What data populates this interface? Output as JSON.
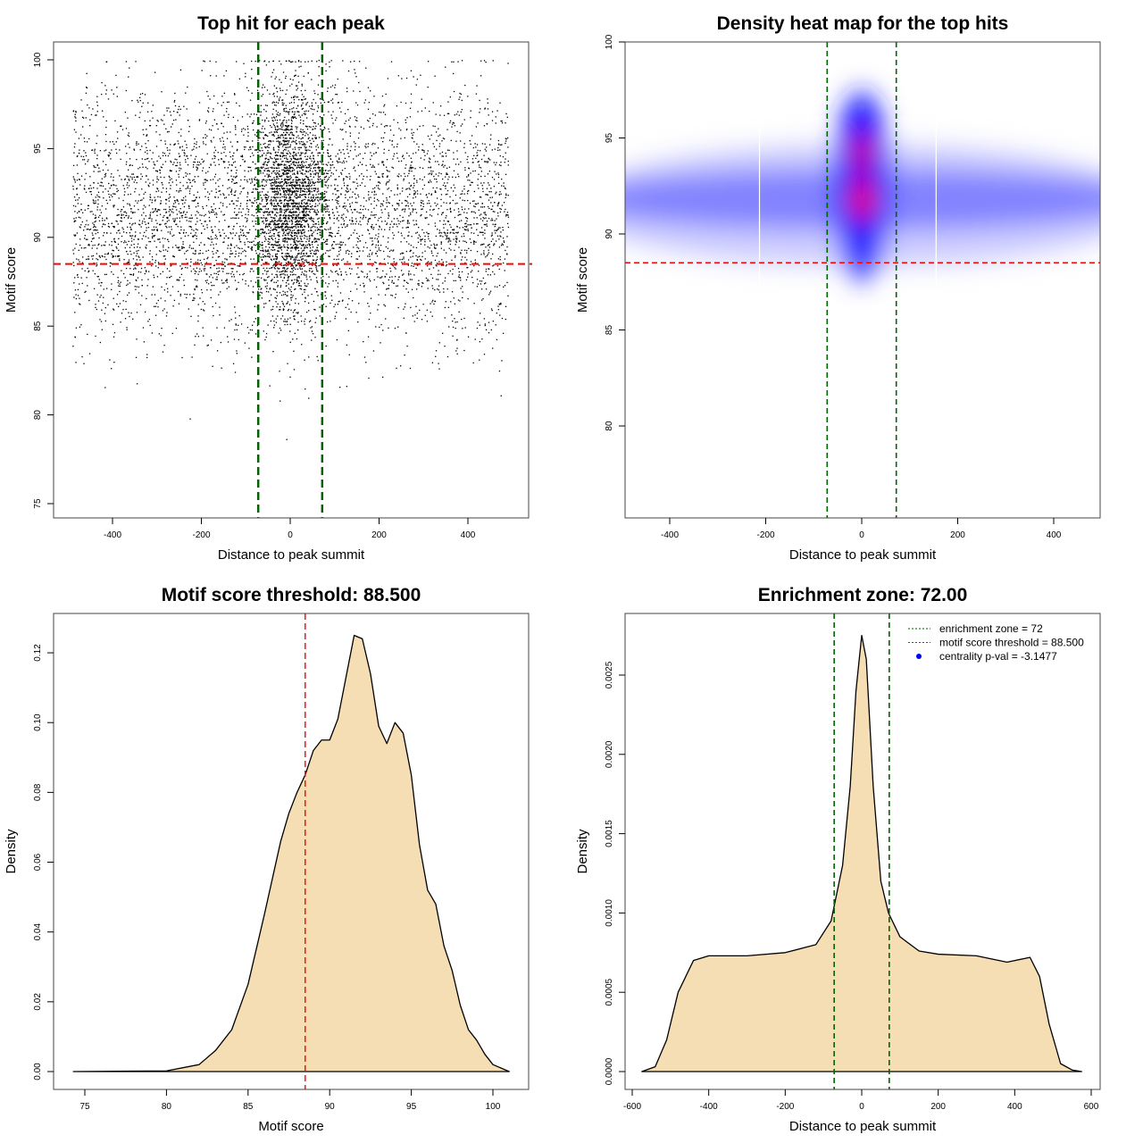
{
  "chart_data": [
    {
      "type": "scatter",
      "title": "Top hit for each peak",
      "xlabel": "Distance to peak summit",
      "ylabel": "Motif score",
      "xticks": [
        -400,
        -200,
        0,
        200,
        400
      ],
      "yticks": [
        75,
        80,
        85,
        90,
        95,
        100
      ],
      "xlim": [
        -532,
        537
      ],
      "ylim": [
        74.3,
        101
      ],
      "vlines": [
        -72,
        72
      ],
      "hline": 88.5,
      "vline_color": "#006400",
      "hline_color": "#ff0000",
      "points_description": {
        "n": 7000,
        "x_range": [
          -490,
          490
        ],
        "central_fraction": 0.3,
        "central_sd": 40,
        "y_mean": 91.5,
        "y_sd": 3.3,
        "y_max": 100,
        "seed": 7
      }
    },
    {
      "type": "heatmap",
      "title": "Density heat map for the top hits",
      "xlabel": "Distance to peak summit",
      "ylabel": "Motif score",
      "xticks": [
        -400,
        -200,
        0,
        200,
        400
      ],
      "yticks": [
        80,
        85,
        90,
        95,
        100
      ],
      "xlim": [
        -492,
        498
      ],
      "ylim": [
        75.2,
        100
      ],
      "vlines": [
        -72,
        72
      ],
      "hline": 88.5,
      "density_blobs": [
        {
          "x": 0,
          "y": 91.5,
          "sx": 600,
          "sy": 3.2,
          "color": "#c8c8ff",
          "opacity": 0.9
        },
        {
          "x": 0,
          "y": 91.8,
          "sx": 600,
          "sy": 1.6,
          "color": "#7070ff",
          "opacity": 0.8
        },
        {
          "x": 0,
          "y": 92.5,
          "sx": 60,
          "sy": 5,
          "color": "#2020ff",
          "opacity": 0.9
        },
        {
          "x": 0,
          "y": 93,
          "sx": 35,
          "sy": 3.5,
          "color": "#0000ff",
          "opacity": 1
        },
        {
          "x": 2,
          "y": 94.2,
          "sx": 18,
          "sy": 0.9,
          "color": "#ff0000",
          "opacity": 0.95
        },
        {
          "x": 2,
          "y": 91.8,
          "sx": 22,
          "sy": 1.1,
          "color": "#ff0000",
          "opacity": 1
        }
      ]
    },
    {
      "type": "area",
      "title": "Motif score threshold: 88.500",
      "xlabel": "Motif score",
      "ylabel": "Density",
      "xticks": [
        75,
        80,
        85,
        90,
        95,
        100
      ],
      "yticks": [
        "0.00",
        "0.02",
        "0.04",
        "0.06",
        "0.08",
        "0.10",
        "0.12"
      ],
      "vline": 88.5,
      "fill": "#f5deb3",
      "x": [
        74.3,
        80,
        82,
        83,
        84,
        85,
        86,
        87,
        87.5,
        88,
        88.5,
        89,
        89.5,
        90,
        90.5,
        91,
        91.5,
        92,
        92.5,
        93,
        93.5,
        94,
        94.5,
        95,
        95.5,
        96,
        96.5,
        97,
        97.5,
        98,
        98.5,
        99,
        99.5,
        100,
        101
      ],
      "y": [
        0,
        0.0002,
        0.002,
        0.006,
        0.012,
        0.025,
        0.045,
        0.066,
        0.074,
        0.08,
        0.085,
        0.092,
        0.095,
        0.095,
        0.101,
        0.113,
        0.125,
        0.124,
        0.114,
        0.099,
        0.094,
        0.1,
        0.097,
        0.085,
        0.065,
        0.052,
        0.048,
        0.036,
        0.029,
        0.019,
        0.012,
        0.009,
        0.005,
        0.002,
        0
      ]
    },
    {
      "type": "area",
      "title": "Enrichment zone: 72.00",
      "xlabel": "Distance to peak summit",
      "ylabel": "Density",
      "xticks": [
        -600,
        -400,
        -200,
        0,
        200,
        400,
        600
      ],
      "yticks": [
        "0.0000",
        "0.0005",
        "0.0010",
        "0.0015",
        "0.0020",
        "0.0025"
      ],
      "vlines": [
        -72,
        72
      ],
      "fill": "#f5deb3",
      "x": [
        -575,
        -540,
        -510,
        -480,
        -440,
        -400,
        -300,
        -200,
        -120,
        -80,
        -50,
        -30,
        -15,
        0,
        12,
        30,
        50,
        70,
        100,
        150,
        200,
        300,
        380,
        440,
        465,
        490,
        520,
        550,
        575
      ],
      "y": [
        0,
        3e-05,
        0.0002,
        0.0005,
        0.0007,
        0.00073,
        0.00073,
        0.00075,
        0.0008,
        0.00095,
        0.0013,
        0.0018,
        0.0024,
        0.00275,
        0.0026,
        0.0018,
        0.0012,
        0.001,
        0.00085,
        0.00076,
        0.00074,
        0.00073,
        0.00069,
        0.00072,
        0.0006,
        0.0003,
        5e-05,
        1e-05,
        0
      ],
      "legend": {
        "position": "top-right",
        "entries": [
          {
            "label": "enrichment zone = 72",
            "color": "#006400",
            "style": "dotted-line"
          },
          {
            "label": "motif score threshold = 88.500",
            "color": "#ff0000",
            "style": "dotted-line"
          },
          {
            "label": "centrality p-val = -3.1477",
            "color": "#0000ff",
            "style": "point"
          }
        ]
      }
    }
  ]
}
